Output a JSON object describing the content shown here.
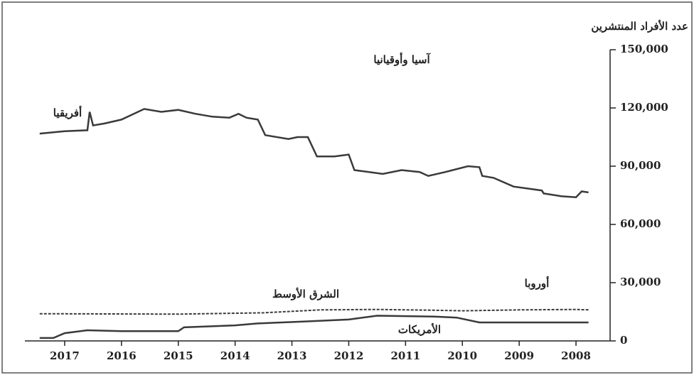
{
  "chart_data": {
    "type": "line",
    "y_label": "عدد الأفراد المنتشرين",
    "annotations": [
      "آسيا وأوقيانيا",
      "أوروبا"
    ],
    "x_reversed": true,
    "xlim": [
      2017.7,
      2007.4
    ],
    "xticks": [
      2017,
      2016,
      2015,
      2014,
      2013,
      2012,
      2011,
      2010,
      2009,
      2008
    ],
    "ylim": [
      0,
      150000
    ],
    "yticks": [
      0,
      {
        "value": 30000,
        "label": "30,000"
      },
      {
        "value": 60000,
        "label": "60,000"
      },
      {
        "value": 90000,
        "label": "90,000"
      },
      {
        "value": 120000,
        "label": "120,000"
      },
      {
        "value": 150000,
        "label": "150,000"
      }
    ],
    "series": [
      {
        "name": "أفريقيا",
        "color": "#3a3a3a",
        "dash": false,
        "x": [
          2017.44,
          2017.0,
          2016.6,
          2016.56,
          2016.5,
          2016.3,
          2016.0,
          2015.6,
          2015.3,
          2015.0,
          2014.7,
          2014.4,
          2014.1,
          2013.94,
          2013.8,
          2013.6,
          2013.47,
          2013.06,
          2012.9,
          2012.72,
          2012.56,
          2012.25,
          2012.0,
          2011.9,
          2011.4,
          2011.07,
          2010.75,
          2010.6,
          2010.3,
          2009.9,
          2009.7,
          2009.65,
          2009.45,
          2009.1,
          2008.6,
          2008.57,
          2008.25,
          2008.0,
          2007.9,
          2007.78
        ],
        "values": [
          106800,
          108000,
          108500,
          118000,
          111000,
          112000,
          114000,
          119500,
          118000,
          119000,
          117000,
          115500,
          115000,
          117000,
          115000,
          114000,
          106000,
          104000,
          105000,
          105000,
          95000,
          95000,
          96000,
          88000,
          86000,
          88000,
          87000,
          85000,
          87000,
          90000,
          89500,
          85000,
          84000,
          79500,
          77500,
          76000,
          74500,
          74000,
          77000,
          76500
        ]
      },
      {
        "name": "الشرق الأوسط",
        "color": "#3a3a3a",
        "dash": true,
        "x": [
          2017.44,
          2015.0,
          2013.5,
          2012.5,
          2011.5,
          2010.5,
          2010.0,
          2009.0,
          2008.0,
          2007.78
        ],
        "values": [
          14000,
          13800,
          14500,
          16000,
          16200,
          15800,
          15500,
          16000,
          16200,
          16000
        ]
      },
      {
        "name": "الأمريكات",
        "color": "#3a3a3a",
        "dash": false,
        "x": [
          2017.44,
          2017.2,
          2017.0,
          2016.6,
          2016.0,
          2015.0,
          2014.9,
          2014.0,
          2013.6,
          2012.8,
          2012.0,
          2011.5,
          2010.5,
          2010.1,
          2009.7,
          2007.78
        ],
        "values": [
          1500,
          1500,
          4000,
          5500,
          5000,
          5000,
          7000,
          8000,
          9000,
          10000,
          11000,
          13000,
          12500,
          12000,
          9500,
          9500
        ]
      }
    ]
  }
}
